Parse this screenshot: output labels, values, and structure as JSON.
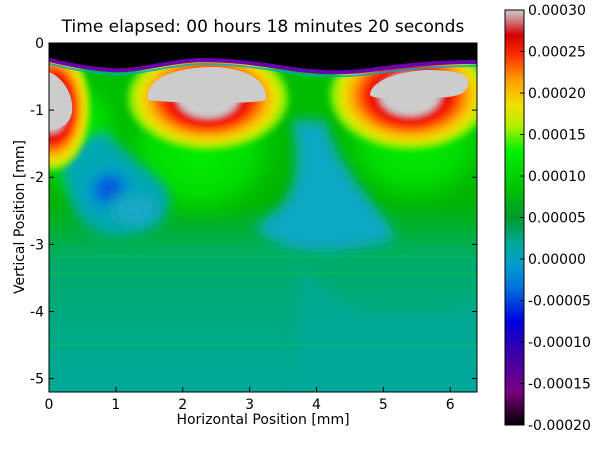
{
  "chart_data": {
    "type": "heatmap",
    "title": "Time elapsed: 00 hours 18 minutes 20 seconds",
    "xlabel": "Horizontal Position [mm]",
    "ylabel": "Vertical Position [mm]",
    "xlim": [
      0,
      6.4
    ],
    "ylim": [
      -5.2,
      0
    ],
    "xticks": [
      0,
      1,
      2,
      3,
      4,
      5,
      6
    ],
    "xtick_labels": [
      "0",
      "1",
      "2",
      "3",
      "4",
      "5",
      "6"
    ],
    "yticks": [
      0,
      -1,
      -2,
      -3,
      -4,
      -5
    ],
    "ytick_labels": [
      "0",
      "-1",
      "-2",
      "-3",
      "-4",
      "-5"
    ],
    "colorbar": {
      "range": [
        -0.0002,
        0.0003
      ],
      "ticks": [
        0.0003,
        0.00025,
        0.0002,
        0.00015,
        0.0001,
        5e-05,
        0.0,
        -5e-05,
        -0.0001,
        -0.00015,
        -0.0002
      ],
      "tick_labels": [
        "0.00030",
        "0.00025",
        "0.00020",
        "0.00015",
        "0.00010",
        "0.00005",
        "0.00000",
        "-0.00005",
        "-0.00010",
        "-0.00015",
        "-0.00020"
      ],
      "colormap": "nipy_spectral-like"
    },
    "features": [
      {
        "label": "surface band",
        "x_range": [
          0,
          6.4
        ],
        "y_range": [
          -0.4,
          0
        ],
        "value": -0.0002
      },
      {
        "label": "saturated lobe",
        "center": [
          0.1,
          -0.9
        ],
        "value": 0.0003
      },
      {
        "label": "saturated lobe",
        "center": [
          2.3,
          -0.85
        ],
        "value": 0.0003
      },
      {
        "label": "saturated lobe",
        "center": [
          5.5,
          -0.75
        ],
        "value": 0.0003
      },
      {
        "label": "negative pocket",
        "center": [
          0.85,
          -2.05
        ],
        "value": -0.00011
      },
      {
        "label": "negative region",
        "center": [
          4.0,
          -2.6
        ],
        "value": -3e-05
      }
    ]
  }
}
